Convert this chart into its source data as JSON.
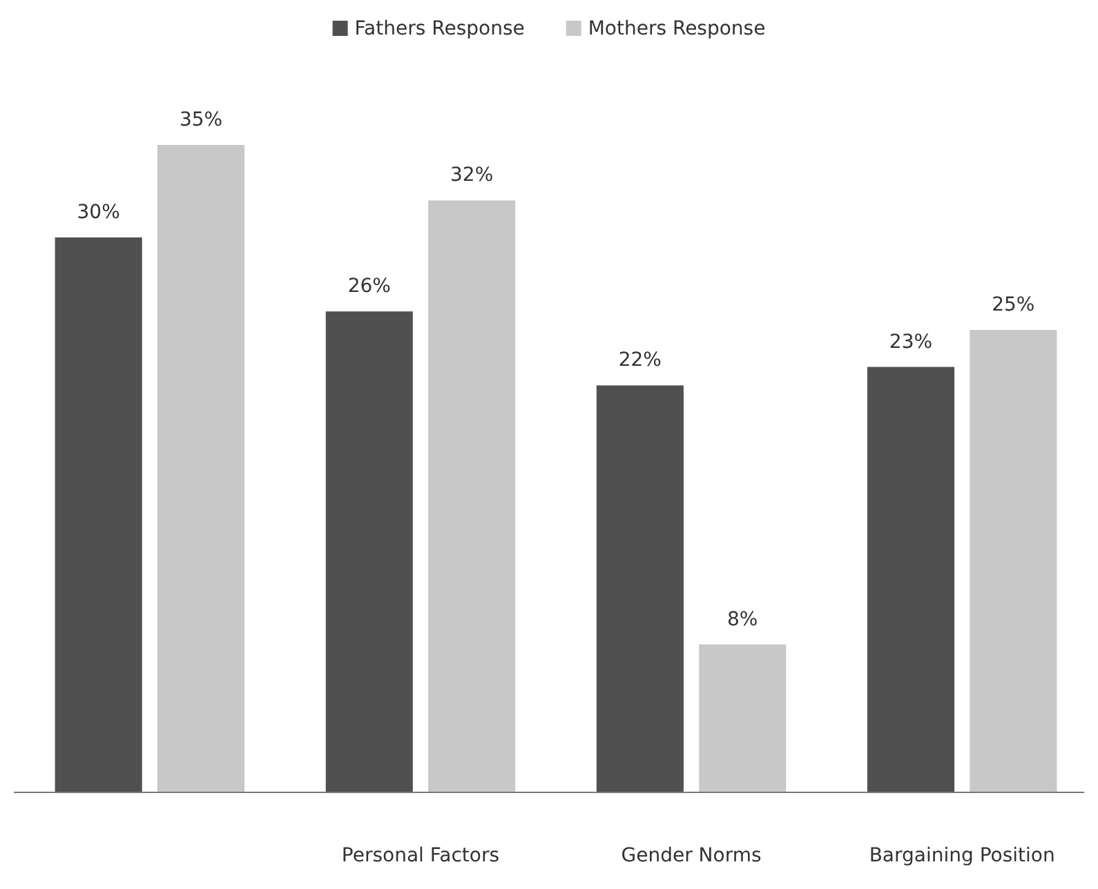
{
  "chart_data": {
    "type": "bar",
    "categories": [
      null,
      "Personal Factors",
      "Gender Norms",
      "Bargaining Position"
    ],
    "series": [
      {
        "name": "Fathers Response",
        "color": "#505050",
        "values": [
          30,
          26,
          22,
          23
        ],
        "value_labels": [
          "30%",
          "26%",
          "22%",
          "23%"
        ]
      },
      {
        "name": "Mothers Response",
        "color": "#c8c8c8",
        "values": [
          35,
          32,
          8,
          25
        ],
        "value_labels": [
          "35%",
          "32%",
          "8%",
          "25%"
        ]
      }
    ],
    "legend": "top",
    "grid": false
  }
}
